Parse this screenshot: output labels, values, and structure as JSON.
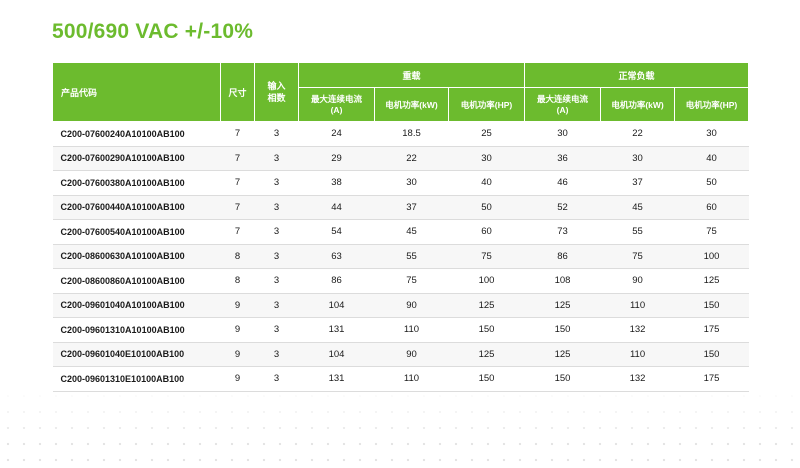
{
  "title": "500/690 VAC +/-10%",
  "table": {
    "headers": {
      "product_code": "产品代码",
      "size": "尺寸",
      "input_phases": "输入\n相数",
      "heavy": "重载",
      "normal": "正常负载",
      "max_current": "最大连续电流\n(A)",
      "motor_kw": "电机功率(kW)",
      "motor_hp": "电机功率(HP)"
    },
    "rows": [
      [
        "C200-07600240A10100AB100",
        "7",
        "3",
        "24",
        "18.5",
        "25",
        "30",
        "22",
        "30"
      ],
      [
        "C200-07600290A10100AB100",
        "7",
        "3",
        "29",
        "22",
        "30",
        "36",
        "30",
        "40"
      ],
      [
        "C200-07600380A10100AB100",
        "7",
        "3",
        "38",
        "30",
        "40",
        "46",
        "37",
        "50"
      ],
      [
        "C200-07600440A10100AB100",
        "7",
        "3",
        "44",
        "37",
        "50",
        "52",
        "45",
        "60"
      ],
      [
        "C200-07600540A10100AB100",
        "7",
        "3",
        "54",
        "45",
        "60",
        "73",
        "55",
        "75"
      ],
      [
        "C200-08600630A10100AB100",
        "8",
        "3",
        "63",
        "55",
        "75",
        "86",
        "75",
        "100"
      ],
      [
        "C200-08600860A10100AB100",
        "8",
        "3",
        "86",
        "75",
        "100",
        "108",
        "90",
        "125"
      ],
      [
        "C200-09601040A10100AB100",
        "9",
        "3",
        "104",
        "90",
        "125",
        "125",
        "110",
        "150"
      ],
      [
        "C200-09601310A10100AB100",
        "9",
        "3",
        "131",
        "110",
        "150",
        "150",
        "132",
        "175"
      ],
      [
        "C200-09601040E10100AB100",
        "9",
        "3",
        "104",
        "90",
        "125",
        "125",
        "110",
        "150"
      ],
      [
        "C200-09601310E10100AB100",
        "9",
        "3",
        "131",
        "110",
        "150",
        "150",
        "132",
        "175"
      ]
    ]
  },
  "colors": {
    "accent": "#6cbb2e",
    "header_text": "#ffffff"
  }
}
